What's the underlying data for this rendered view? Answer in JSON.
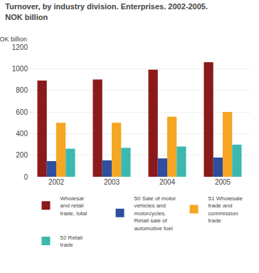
{
  "chart_data": {
    "type": "bar",
    "title": "Turnover, by industry division. Enterprises. 2002-2005.",
    "subtitle": "NOK billion",
    "ylabel": "NOK billion",
    "categories": [
      "2002",
      "2003",
      "2004",
      "2005"
    ],
    "series": [
      {
        "name": "Wholesal\nand retail\ntrade, total",
        "color": "#8b1a1a",
        "values": [
          890,
          900,
          990,
          1060
        ]
      },
      {
        "name": "50 Sale of motor\nvehicles and\nmotorcycles.\nRetail sale of\nautomotive fuel",
        "color": "#2e4fa0",
        "values": [
          145,
          152,
          170,
          178
        ]
      },
      {
        "name": "51 Wholesale\ntrade and\ncommission\ntrade",
        "color": "#f5a623",
        "values": [
          500,
          500,
          555,
          600
        ]
      },
      {
        "name": "52 Retail\ntrade",
        "color": "#3cb8b0",
        "values": [
          260,
          268,
          280,
          297
        ]
      }
    ],
    "ylim": [
      0,
      1200
    ],
    "yticks": [
      0,
      200,
      400,
      600,
      800,
      1000,
      1200
    ],
    "grid": true,
    "legend": "bottom"
  }
}
